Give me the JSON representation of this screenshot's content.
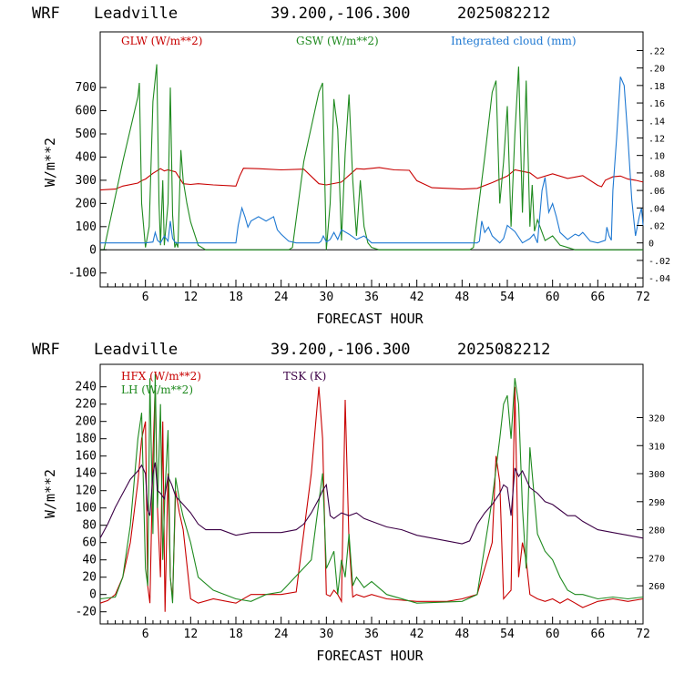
{
  "colors": {
    "red": "#c80000",
    "green": "#1f8a1f",
    "blue": "#1e78d2",
    "purple": "#3c0046"
  },
  "chart_data": [
    {
      "type": "line",
      "header": {
        "model": "WRF",
        "site": "Leadville",
        "coords": "39.200,-106.300",
        "init": "2025082212"
      },
      "xlabel": "FORECAST HOUR",
      "ylabel": "W/m**2",
      "xlim": [
        0,
        72
      ],
      "ylim": [
        -160,
        940
      ],
      "x_ticks": [
        "6",
        "12",
        "18",
        "24",
        "30",
        "36",
        "42",
        "48",
        "54",
        "60",
        "66",
        "72"
      ],
      "y_ticks": [
        "-100",
        "0",
        "100",
        "200",
        "300",
        "400",
        "500",
        "600",
        "700"
      ],
      "y2lim": [
        -0.0503,
        0.2413
      ],
      "y2_ticks": [
        "-.04",
        "-.02",
        "0",
        ".02",
        ".04",
        ".06",
        ".08",
        ".10",
        ".12",
        ".14",
        ".16",
        ".18",
        ".20",
        ".22"
      ],
      "zero_line": true,
      "series": [
        {
          "name": "GLW (W/m**2)",
          "color": "red",
          "axis": "left",
          "x": [
            0,
            2,
            3,
            5,
            5.5,
            6,
            7,
            8,
            8.5,
            9,
            10,
            11,
            12,
            13,
            15,
            18,
            18.5,
            19,
            21,
            24,
            27,
            29,
            30,
            32,
            34,
            35,
            37,
            39,
            41,
            42,
            44,
            48,
            50,
            52,
            54,
            55,
            57,
            58,
            60,
            62,
            64,
            66,
            66.5,
            67,
            68,
            69,
            70,
            71,
            72
          ],
          "y": [
            258,
            262,
            275,
            288,
            298,
            305,
            330,
            350,
            340,
            345,
            336,
            285,
            282,
            285,
            280,
            275,
            318,
            352,
            350,
            345,
            348,
            285,
            280,
            292,
            350,
            348,
            355,
            345,
            343,
            298,
            268,
            262,
            265,
            290,
            318,
            345,
            332,
            308,
            328,
            308,
            320,
            278,
            272,
            300,
            315,
            318,
            305,
            300,
            292
          ]
        },
        {
          "name": "GSW (W/m**2)",
          "color": "green",
          "axis": "left",
          "x": [
            0,
            0.5,
            3,
            5,
            5.2,
            5.5,
            6,
            6.5,
            7,
            7.5,
            7.8,
            8,
            8.3,
            8.5,
            9,
            9.3,
            9.6,
            9.9,
            10.1,
            10.3,
            10.7,
            11,
            11.5,
            12,
            13,
            14,
            25,
            25.5,
            27,
            29,
            29.5,
            30,
            30.5,
            31,
            31.5,
            32,
            32.5,
            33,
            33.5,
            34,
            34.5,
            35,
            35.5,
            36,
            37,
            38,
            49,
            49.5,
            51,
            52,
            52.5,
            53,
            53.5,
            54,
            54.5,
            55,
            55.5,
            56,
            56.5,
            57,
            57.3,
            57.6,
            58,
            59,
            60,
            61,
            62,
            63,
            72
          ],
          "y": [
            0,
            0,
            380,
            660,
            720,
            200,
            10,
            100,
            640,
            800,
            200,
            20,
            300,
            20,
            200,
            700,
            150,
            10,
            30,
            10,
            430,
            300,
            200,
            120,
            20,
            0,
            0,
            10,
            380,
            680,
            720,
            0,
            200,
            650,
            520,
            40,
            420,
            670,
            300,
            60,
            300,
            100,
            30,
            10,
            0,
            0,
            0,
            10,
            400,
            680,
            730,
            200,
            380,
            620,
            100,
            500,
            790,
            160,
            730,
            100,
            280,
            80,
            130,
            40,
            60,
            20,
            10,
            0,
            0
          ]
        },
        {
          "name": "Integrated cloud (mm)",
          "color": "blue",
          "axis": "right",
          "x": [
            0,
            6,
            7,
            7.3,
            7.6,
            8,
            8.5,
            9,
            9.3,
            9.6,
            10,
            18,
            18.3,
            18.8,
            19.2,
            19.6,
            20,
            21,
            22,
            23,
            23.5,
            24,
            25,
            26,
            27,
            29,
            29.3,
            29.6,
            30,
            30.5,
            31,
            31.5,
            32,
            33,
            34,
            35,
            36,
            50,
            50.3,
            50.6,
            51,
            51.5,
            52,
            53,
            53.5,
            54,
            55,
            56,
            57,
            57.5,
            58,
            58.3,
            58.6,
            59,
            59.5,
            60,
            60.5,
            61,
            62,
            63,
            63.5,
            64,
            65,
            66,
            67,
            67.2,
            67.5,
            67.8,
            68,
            68.5,
            69,
            69.5,
            70,
            70.5,
            71,
            71.5,
            71.8,
            72
          ],
          "y": [
            0,
            0,
            0.001,
            0.012,
            0.003,
            0,
            0.008,
            0.002,
            0.025,
            0.005,
            0,
            0,
            0.02,
            0.04,
            0.03,
            0.018,
            0.025,
            0.03,
            0.025,
            0.03,
            0.015,
            0.01,
            0.002,
            0,
            0,
            0,
            0.002,
            0.008,
            0.001,
            0.004,
            0.012,
            0.004,
            0.015,
            0.01,
            0.004,
            0.008,
            0,
            0,
            0.002,
            0.025,
            0.012,
            0.018,
            0.008,
            0,
            0.005,
            0.02,
            0.013,
            0,
            0.005,
            0.01,
            0,
            0.03,
            0.06,
            0.075,
            0.035,
            0.045,
            0.03,
            0.012,
            0.004,
            0.01,
            0.008,
            0.012,
            0.002,
            0,
            0.003,
            0.018,
            0.008,
            0.003,
            0.06,
            0.12,
            0.19,
            0.18,
            0.12,
            0.05,
            0.008,
            0.03,
            0.04,
            0.02
          ]
        }
      ],
      "legend": [
        {
          "label": "GLW (W/m**2)",
          "color": "red"
        },
        {
          "label": "GSW (W/m**2)",
          "color": "green"
        },
        {
          "label": "Integrated cloud (mm)",
          "color": "blue"
        }
      ]
    },
    {
      "type": "line",
      "header": {
        "model": "WRF",
        "site": "Leadville",
        "coords": "39.200,-106.300",
        "init": "2025082212"
      },
      "xlabel": "FORECAST HOUR",
      "ylabel": "W/m**2",
      "xlim": [
        0,
        72
      ],
      "ylim": [
        -34,
        266
      ],
      "x_ticks": [
        "6",
        "12",
        "18",
        "24",
        "30",
        "36",
        "42",
        "48",
        "54",
        "60",
        "66",
        "72"
      ],
      "y_ticks": [
        "-20",
        "0",
        "20",
        "40",
        "60",
        "80",
        "100",
        "120",
        "140",
        "160",
        "180",
        "200",
        "220",
        "240"
      ],
      "y2lim": [
        246.4,
        339
      ],
      "y2_ticks": [
        "260",
        "270",
        "280",
        "290",
        "300",
        "310",
        "320"
      ],
      "series": [
        {
          "name": "HFX (W/m**2)",
          "color": "red",
          "axis": "left",
          "x": [
            0,
            1,
            2,
            3,
            4,
            5,
            5.5,
            6,
            6.3,
            6.6,
            7,
            7.3,
            7.6,
            8,
            8.3,
            8.6,
            9,
            9.3,
            9.6,
            10,
            10.5,
            11,
            12,
            13,
            15,
            18,
            20,
            24,
            26,
            28,
            28.8,
            29,
            29.5,
            30,
            30.5,
            31,
            31.5,
            32,
            32.5,
            33,
            33.5,
            34,
            35,
            36,
            38,
            42,
            46,
            48,
            50,
            52,
            52.5,
            53,
            53.5,
            54,
            54.5,
            55,
            55.5,
            56,
            56.5,
            57,
            58,
            59,
            60,
            61,
            62,
            63,
            64,
            66,
            68,
            70,
            72
          ],
          "y": [
            -10,
            -7,
            0,
            20,
            60,
            130,
            180,
            200,
            10,
            -10,
            160,
            240,
            100,
            20,
            200,
            -20,
            140,
            20,
            -5,
            120,
            95,
            75,
            -5,
            -10,
            -5,
            -10,
            0,
            0,
            3,
            140,
            220,
            240,
            180,
            0,
            -2,
            5,
            0,
            -8,
            225,
            60,
            -3,
            0,
            -3,
            0,
            -5,
            -8,
            -8,
            -5,
            0,
            60,
            160,
            130,
            -5,
            0,
            5,
            240,
            20,
            60,
            40,
            0,
            -5,
            -8,
            -5,
            -10,
            -5,
            -10,
            -15,
            -8,
            -5,
            -8,
            -5
          ]
        },
        {
          "name": "LH (W/m**2)",
          "color": "green",
          "axis": "left",
          "x": [
            0,
            2,
            3,
            4,
            5,
            5.5,
            6,
            6.3,
            6.6,
            7,
            7.3,
            7.6,
            8,
            8.3,
            8.6,
            9,
            9.3,
            9.6,
            10,
            10.5,
            11,
            12,
            13,
            15,
            18,
            20,
            22,
            24,
            28,
            29.5,
            30,
            30.5,
            31,
            31.5,
            32,
            32.5,
            33,
            33.5,
            34,
            35,
            36,
            38,
            42,
            48,
            50,
            52,
            53,
            53.5,
            54,
            54.5,
            55,
            55.5,
            56,
            56.5,
            57,
            58,
            59,
            60,
            61,
            62,
            63,
            64,
            66,
            68,
            70,
            72
          ],
          "y": [
            -5,
            -3,
            20,
            80,
            180,
            210,
            30,
            10,
            250,
            70,
            255,
            100,
            220,
            40,
            120,
            190,
            20,
            -10,
            135,
            110,
            90,
            60,
            20,
            5,
            -5,
            -8,
            0,
            3,
            40,
            140,
            30,
            40,
            50,
            0,
            40,
            20,
            70,
            10,
            20,
            8,
            15,
            0,
            -10,
            -8,
            0,
            110,
            180,
            220,
            230,
            180,
            250,
            220,
            100,
            30,
            170,
            70,
            50,
            40,
            20,
            5,
            0,
            0,
            -5,
            -3,
            -5,
            -3
          ]
        },
        {
          "name": "TSK (K)",
          "color": "purple",
          "axis": "right",
          "x": [
            0,
            1,
            2,
            3,
            4,
            5,
            5.5,
            6,
            6.3,
            6.6,
            7,
            7.3,
            7.6,
            8,
            8.5,
            9,
            9.5,
            10,
            11,
            12,
            13,
            14,
            16,
            18,
            20,
            24,
            26,
            27,
            28,
            29,
            29.5,
            30,
            30.5,
            31,
            32,
            33,
            34,
            35,
            36,
            38,
            40,
            42,
            44,
            46,
            48,
            49,
            50,
            51,
            52,
            53,
            53.5,
            54,
            54.5,
            55,
            55.5,
            56,
            56.5,
            57,
            58,
            59,
            60,
            61,
            62,
            63,
            64,
            66,
            68,
            70,
            72
          ],
          "y": [
            277,
            282,
            288,
            293,
            298,
            301,
            303,
            300,
            287,
            285,
            300,
            304,
            294,
            293,
            291,
            299,
            296,
            292,
            289,
            286,
            282,
            280,
            280,
            278,
            279,
            279,
            280,
            282,
            286,
            291,
            294,
            296,
            285,
            284,
            286,
            285,
            286,
            284,
            283,
            281,
            280,
            278,
            277,
            276,
            275,
            276,
            282,
            286,
            289,
            293,
            296,
            295,
            285,
            302,
            299,
            301,
            298,
            295,
            293,
            290,
            289,
            287,
            285,
            285,
            283,
            280,
            279,
            278,
            277
          ]
        }
      ],
      "legend": [
        {
          "label": "HFX (W/m**2)",
          "color": "red"
        },
        {
          "label": "LH  (W/m**2)",
          "color": "green"
        },
        {
          "label": "TSK (K)",
          "color": "purple"
        }
      ]
    }
  ]
}
